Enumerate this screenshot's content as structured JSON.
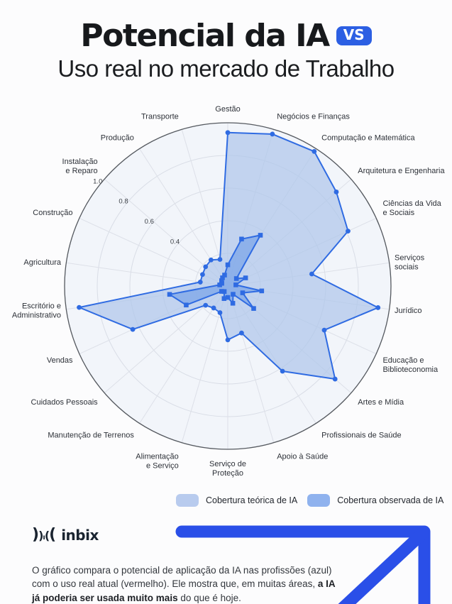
{
  "header": {
    "title": "Potencial da IA",
    "vs_badge": "VS",
    "subtitle": "Uso real no mercado de Trabalho"
  },
  "chart_data": {
    "type": "radar",
    "categories": [
      "Gestão",
      "Negócios e Finanças",
      "Computação e Matemática",
      "Arquitetura e Engenharia",
      "Ciências da Vida\ne Sociais",
      "Serviços\nsociais",
      "Jurídico",
      "Educação e\nBiblioteconomia",
      "Artes e Mídia",
      "Profissionais de Saúde",
      "Apoio à Saúde",
      "Serviço de\nProteção",
      "Alimentação\ne Serviço",
      "Manutenção de Terrenos",
      "Cuidados Pessoais",
      "Vendas",
      "Escritório e\nAdministrativo",
      "Agricultura",
      "Construção",
      "Instalação\ne Reparo",
      "Produção",
      "Transporte"
    ],
    "series": [
      {
        "name": "Cobertura teórica de IA",
        "values": [
          0.94,
          0.97,
          0.98,
          0.88,
          0.81,
          0.52,
          0.93,
          0.65,
          0.87,
          0.62,
          0.3,
          0.33,
          0.17,
          0.16,
          0.18,
          0.64,
          0.92,
          0.17,
          0.17,
          0.18,
          0.19,
          0.17
        ]
      },
      {
        "name": "Cobertura observada de IA",
        "values": [
          0.13,
          0.3,
          0.37,
          0.07,
          0.12,
          0.05,
          0.21,
          0.1,
          0.21,
          0.06,
          0.11,
          0.07,
          0.08,
          0.04,
          0.05,
          0.28,
          0.36,
          0.05,
          0.04,
          0.05,
          0.06,
          0.07
        ]
      }
    ],
    "rlim": [
      0,
      1
    ],
    "ring_values": [
      0.2,
      0.4,
      0.6,
      0.8,
      1.0
    ],
    "tick_labels": [
      "0.4",
      "0.6",
      "0.8",
      "1.0"
    ],
    "tick_angle_deg": 308,
    "grid": true,
    "legend_position": "bottom"
  },
  "legend": {
    "items": [
      {
        "label": "Cobertura teórica de IA",
        "color": "#b8cbee"
      },
      {
        "label": "Cobertura observada de IA",
        "color": "#8fb2ee"
      }
    ]
  },
  "footer": {
    "brand_mark_chars": [
      ")",
      ")",
      "ı",
      "(",
      "("
    ],
    "brand_name": "inbix",
    "text_pre": "O gráfico compara o potencial de aplicação da IA nas profissões (azul) com o uso real atual (vermelho). Ele mostra que, em muitas áreas, ",
    "text_bold": "a IA já poderia ser usada muito mais",
    "text_post": " do que é hoje."
  },
  "colors": {
    "accent": "#2c5fe3",
    "arrow": "#2a4fe8",
    "series_line": "#2f6be2",
    "theoretical_fill": "#aec6ea",
    "observed_fill": "#7fa8e8",
    "grid": "#d9dde6",
    "spoke": "#dde0e8",
    "outer_ring": "#55595f",
    "plot_bg": "#f2f5fa",
    "text_dark": "#17191c"
  }
}
